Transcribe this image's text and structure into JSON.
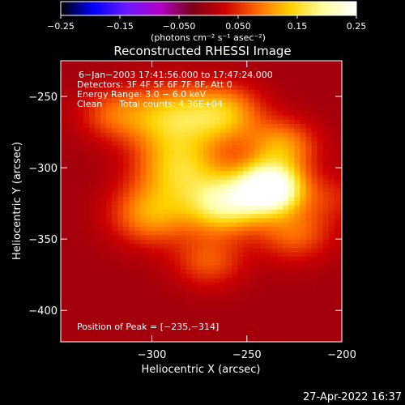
{
  "chart_data": {
    "type": "heatmap",
    "title": "Reconstructed RHESSI Image",
    "xlabel": "Heliocentric X (arcsec)",
    "ylabel": "Heliocentric Y (arcsec)",
    "xlim": [
      -348,
      -200
    ],
    "ylim": [
      -422,
      -225
    ],
    "xticks": [
      -300,
      -250,
      -200
    ],
    "xtick_labels": [
      "−300",
      "−250",
      "−200"
    ],
    "yticks": [
      -250,
      -300,
      -350,
      -400
    ],
    "ytick_labels": [
      "−250",
      "−300",
      "−350",
      "−400"
    ],
    "colorbar": {
      "range": [
        -0.25,
        0.25
      ],
      "ticks": [
        -0.25,
        -0.15,
        -0.05,
        0.05,
        0.15,
        0.25
      ],
      "tick_labels": [
        "−0.25",
        "−0.15",
        "−0.050",
        "0.050",
        "0.15",
        "0.25"
      ],
      "unit_label": "(photons cm⁻² s⁻¹ asec⁻²)"
    },
    "annotations": [
      "6−Jan−2003 17:41:56.000 to 17:47:24.000",
      "Detectors: 3F 4F 5F 6F 7F 8F, Att 0",
      "Energy Range: 3.0 − 6.0 keV",
      "Clean      Total counts: 4.36E+04"
    ],
    "peak_label": "Position of Peak = [−235,−314]",
    "peak": [
      -235,
      -314
    ],
    "components": [
      {
        "x": -238,
        "y": -314,
        "amp": 0.28,
        "sigma": 12
      },
      {
        "x": -262,
        "y": -325,
        "amp": 0.18,
        "sigma": 14
      },
      {
        "x": -285,
        "y": -300,
        "amp": 0.13,
        "sigma": 16
      },
      {
        "x": -290,
        "y": -265,
        "amp": 0.13,
        "sigma": 16
      },
      {
        "x": -262,
        "y": -262,
        "amp": 0.12,
        "sigma": 14
      },
      {
        "x": -232,
        "y": -285,
        "amp": 0.11,
        "sigma": 13
      },
      {
        "x": -300,
        "y": -332,
        "amp": 0.11,
        "sigma": 15
      },
      {
        "x": -225,
        "y": -345,
        "amp": 0.08,
        "sigma": 14
      },
      {
        "x": -270,
        "y": -365,
        "amp": 0.07,
        "sigma": 13
      },
      {
        "x": -320,
        "y": -262,
        "amp": 0.07,
        "sigma": 13
      },
      {
        "x": -205,
        "y": -320,
        "amp": 0.04,
        "sigma": 12
      }
    ],
    "background": 0.0,
    "colors": [
      "#000000",
      "#0000ff",
      "#6a1aff",
      "#b000c8",
      "#7a0018",
      "#cc0000",
      "#ff6a00",
      "#ffd200",
      "#ffffa0",
      "#ffffff"
    ]
  },
  "footer": {
    "timestamp": "27-Apr-2022 16:37"
  }
}
